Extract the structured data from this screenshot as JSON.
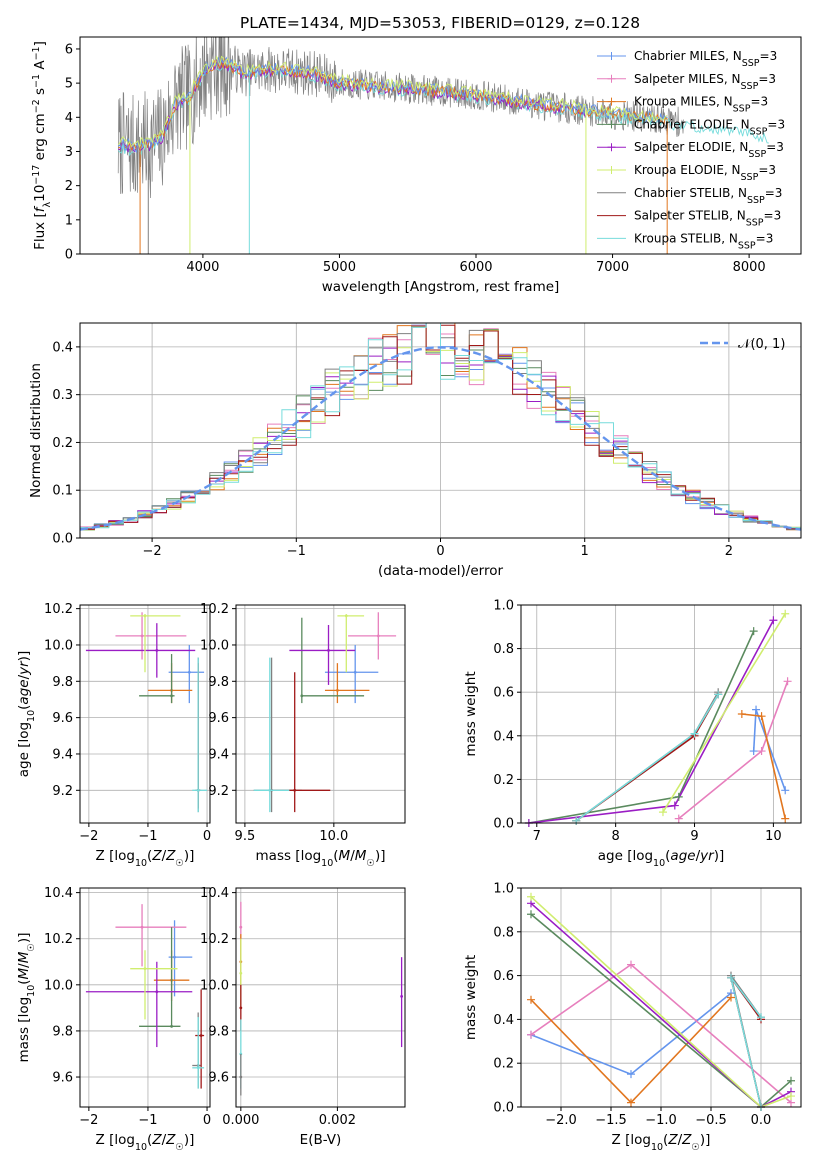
{
  "figure_title": "PLATE=1434, MJD=53053, FIBERID=0129, z=0.128",
  "colors": {
    "blue": "#6495ed",
    "pink": "#e77fbd",
    "orange": "#e1761f",
    "green": "#5a8a5e",
    "purple": "#9a1dc4",
    "yellowgreen": "#d0ed6f",
    "gray": "#808080",
    "darkred": "#a01818",
    "cyan": "#77dcdc"
  },
  "legend_labels": [
    [
      "Chabrier MILES, N",
      "SSP",
      "=3"
    ],
    [
      "Salpeter MILES, N",
      "SSP",
      "=3"
    ],
    [
      "Kroupa MILES, N",
      "SSP",
      "=3"
    ],
    [
      "Chabrier ELODIE, N",
      "SSP",
      "=3"
    ],
    [
      "Salpeter ELODIE, N",
      "SSP",
      "=3"
    ],
    [
      "Kroupa ELODIE, N",
      "SSP",
      "=3"
    ],
    [
      "Chabrier STELIB, N",
      "SSP",
      "=3"
    ],
    [
      "Salpeter STELIB, N",
      "SSP",
      "=3"
    ],
    [
      "Kroupa STELIB, N",
      "SSP",
      "=3"
    ]
  ],
  "chart_data": [
    {
      "id": "spectrum",
      "type": "line",
      "xlabel": "wavelength [Angstrom, rest frame]",
      "ylabel": "Flux [f_λ 10^-17 erg cm^-2 s^-1 A^-1]",
      "xlim": [
        3100,
        8380
      ],
      "ylim": [
        0,
        6.35
      ],
      "xticks": [
        4000,
        5000,
        6000,
        7000,
        8000
      ],
      "yticks": [
        0,
        1,
        2,
        3,
        4,
        5,
        6
      ],
      "grid": false,
      "legend": "top-right",
      "continuum": {
        "x": [
          3400,
          3500,
          3600,
          3700,
          3800,
          3900,
          4000,
          4100,
          4200,
          4300,
          4500,
          4800,
          5000,
          5500,
          6000,
          6500,
          7000,
          7500,
          8000,
          8100
        ],
        "y": [
          3.2,
          3.1,
          3.2,
          3.4,
          4.4,
          4.6,
          5.3,
          5.6,
          5.5,
          5.3,
          5.4,
          5.3,
          5.0,
          4.85,
          4.65,
          4.35,
          4.1,
          3.85,
          3.6,
          3.5
        ]
      },
      "dropouts": [
        {
          "x": 3540,
          "color": "orange"
        },
        {
          "x": 3600,
          "color": "gray"
        },
        {
          "x": 3905,
          "color": "yellowgreen"
        },
        {
          "x": 4340,
          "color": "cyan"
        },
        {
          "x": 6805,
          "color": "yellowgreen"
        },
        {
          "x": 7400,
          "color": "orange"
        }
      ]
    },
    {
      "id": "residuals",
      "type": "line",
      "xlabel": "(data-model)/error",
      "ylabel": "Normed distribution",
      "xlim": [
        -2.5,
        2.5
      ],
      "ylim": [
        0,
        0.45
      ],
      "xticks": [
        -2,
        -1,
        0,
        1,
        2
      ],
      "yticks": [
        0.0,
        0.1,
        0.2,
        0.3,
        0.4
      ],
      "grid": true,
      "legend": "top-right",
      "series": [
        {
          "name": "N(0,1)",
          "label_text": "𝒩(0, 1)",
          "mean": 0,
          "sigma": 1,
          "style": "dashed",
          "color": "blue"
        }
      ],
      "histogram_bin_width": 0.1
    },
    {
      "id": "age_vs_Z",
      "type": "scatter",
      "xlabel": "Z [log10(Z/Z☉)]",
      "ylabel": "age [log10(age/yr)]",
      "xlim": [
        -2.15,
        0.05
      ],
      "ylim": [
        9.02,
        10.22
      ],
      "xticks": [
        -2,
        -1,
        0
      ],
      "yticks": [
        9.2,
        9.4,
        9.6,
        9.8,
        10.0,
        10.2
      ],
      "grid": true,
      "points": [
        {
          "color": "blue",
          "x": -0.3,
          "xlo": -0.65,
          "xhi": -0.05,
          "y": 9.85,
          "ylo": 9.68,
          "yhi": 10.0
        },
        {
          "color": "pink",
          "x": -1.1,
          "xlo": -1.55,
          "xhi": -0.35,
          "y": 10.05,
          "ylo": 9.92,
          "yhi": 10.18
        },
        {
          "color": "orange",
          "x": -0.6,
          "xlo": -1.0,
          "xhi": -0.25,
          "y": 9.75,
          "ylo": 9.68,
          "yhi": 9.9
        },
        {
          "color": "green",
          "x": -0.6,
          "xlo": -1.15,
          "xhi": -0.55,
          "y": 9.72,
          "ylo": 9.68,
          "yhi": 9.95
        },
        {
          "color": "purple",
          "x": -0.85,
          "xlo": -2.05,
          "xhi": -0.2,
          "y": 9.97,
          "ylo": 9.82,
          "yhi": 10.12
        },
        {
          "color": "yellowgreen",
          "x": -1.05,
          "xlo": -1.3,
          "xhi": -0.45,
          "y": 10.16,
          "ylo": 9.85,
          "yhi": 10.17
        },
        {
          "color": "gray",
          "x": -0.15,
          "xlo": -0.2,
          "xhi": -0.1,
          "y": 9.2,
          "ylo": 9.08,
          "yhi": 9.93
        },
        {
          "color": "darkred",
          "x": -0.15,
          "xlo": -0.18,
          "xhi": -0.12,
          "y": 9.2,
          "ylo": 9.1,
          "yhi": 9.9
        },
        {
          "color": "cyan",
          "x": -0.15,
          "xlo": -0.25,
          "xhi": 0.0,
          "y": 9.2,
          "ylo": 9.08,
          "yhi": 9.93
        }
      ]
    },
    {
      "id": "age_vs_mass",
      "type": "scatter",
      "xlabel": "mass [log10(M/M☉)]",
      "ylabel": "",
      "xlim": [
        9.45,
        10.4
      ],
      "ylim": [
        9.02,
        10.22
      ],
      "xticks": [
        9.5,
        10.0
      ],
      "yticks": [
        9.2,
        9.4,
        9.6,
        9.8,
        10.0,
        10.2
      ],
      "grid": true,
      "points": [
        {
          "color": "blue",
          "x": 10.12,
          "xlo": 9.95,
          "xhi": 10.25,
          "y": 9.85,
          "ylo": 9.68,
          "yhi": 10.0
        },
        {
          "color": "pink",
          "x": 10.25,
          "xlo": 10.08,
          "xhi": 10.35,
          "y": 10.05,
          "ylo": 9.92,
          "yhi": 10.18
        },
        {
          "color": "orange",
          "x": 10.02,
          "xlo": 9.95,
          "xhi": 10.2,
          "y": 9.75,
          "ylo": 9.68,
          "yhi": 9.9
        },
        {
          "color": "green",
          "x": 9.82,
          "xlo": 9.82,
          "xhi": 10.17,
          "y": 9.72,
          "ylo": 9.68,
          "yhi": 10.15
        },
        {
          "color": "purple",
          "x": 9.97,
          "xlo": 9.75,
          "xhi": 10.12,
          "y": 9.97,
          "ylo": 9.78,
          "yhi": 10.11
        },
        {
          "color": "yellowgreen",
          "x": 10.07,
          "xlo": 10.02,
          "xhi": 10.17,
          "y": 10.16,
          "ylo": 9.85,
          "yhi": 10.17
        },
        {
          "color": "gray",
          "x": 9.65,
          "xlo": 9.55,
          "xhi": 9.82,
          "y": 9.2,
          "ylo": 9.08,
          "yhi": 9.93
        },
        {
          "color": "darkred",
          "x": 9.78,
          "xlo": 9.65,
          "xhi": 9.98,
          "y": 9.2,
          "ylo": 9.08,
          "yhi": 9.85
        },
        {
          "color": "cyan",
          "x": 9.64,
          "xlo": 9.55,
          "xhi": 9.75,
          "y": 9.2,
          "ylo": 9.08,
          "yhi": 9.93
        }
      ]
    },
    {
      "id": "weight_vs_age",
      "type": "line",
      "xlabel": "age [log10(age/yr)]",
      "ylabel": "mass weight",
      "xlim": [
        6.8,
        10.35
      ],
      "ylim": [
        0,
        1.0
      ],
      "xticks": [
        7,
        8,
        9,
        10
      ],
      "yticks": [
        0.0,
        0.2,
        0.4,
        0.6,
        0.8,
        1.0
      ],
      "grid": true,
      "series": [
        {
          "color": "blue",
          "x": [
            9.75,
            9.78,
            10.15
          ],
          "y": [
            0.33,
            0.52,
            0.15
          ]
        },
        {
          "color": "pink",
          "x": [
            8.8,
            9.85,
            10.18
          ],
          "y": [
            0.02,
            0.33,
            0.65
          ]
        },
        {
          "color": "orange",
          "x": [
            9.6,
            9.85,
            10.15
          ],
          "y": [
            0.5,
            0.49,
            0.02
          ]
        },
        {
          "color": "green",
          "x": [
            6.9,
            8.8,
            9.75
          ],
          "y": [
            0.0,
            0.12,
            0.88
          ]
        },
        {
          "color": "purple",
          "x": [
            6.9,
            8.75,
            10.0
          ],
          "y": [
            0.0,
            0.08,
            0.93
          ]
        },
        {
          "color": "yellowgreen",
          "x": [
            8.6,
            10.15
          ],
          "y": [
            0.05,
            0.96
          ]
        },
        {
          "color": "gray",
          "x": [
            7.5,
            9.0,
            9.3
          ],
          "y": [
            0.01,
            0.41,
            0.6
          ]
        },
        {
          "color": "darkred",
          "x": [
            7.5,
            9.0,
            9.3
          ],
          "y": [
            0.01,
            0.4,
            0.59
          ]
        },
        {
          "color": "cyan",
          "x": [
            7.5,
            9.0,
            9.3
          ],
          "y": [
            0.01,
            0.41,
            0.59
          ]
        }
      ]
    },
    {
      "id": "mass_vs_Z",
      "type": "scatter",
      "xlabel": "Z [log10(Z/Z☉)]",
      "ylabel": "mass [log10(M/M☉)]",
      "xlim": [
        -2.15,
        0.05
      ],
      "ylim": [
        9.47,
        10.42
      ],
      "xticks": [
        -2,
        -1,
        0
      ],
      "yticks": [
        9.6,
        9.8,
        10.0,
        10.2,
        10.4
      ],
      "grid": true,
      "points": [
        {
          "color": "blue",
          "x": -0.55,
          "xlo": -0.65,
          "xhi": -0.25,
          "y": 10.12,
          "ylo": 9.95,
          "yhi": 10.28
        },
        {
          "color": "pink",
          "x": -1.1,
          "xlo": -1.55,
          "xhi": -0.35,
          "y": 10.25,
          "ylo": 10.08,
          "yhi": 10.35
        },
        {
          "color": "orange",
          "x": -0.6,
          "xlo": -0.9,
          "xhi": -0.3,
          "y": 10.02,
          "ylo": 9.93,
          "yhi": 10.15
        },
        {
          "color": "green",
          "x": -0.6,
          "xlo": -1.15,
          "xhi": -0.45,
          "y": 9.82,
          "ylo": 9.82,
          "yhi": 10.25
        },
        {
          "color": "purple",
          "x": -0.85,
          "xlo": -2.05,
          "xhi": -0.25,
          "y": 9.97,
          "ylo": 9.73,
          "yhi": 10.1
        },
        {
          "color": "yellowgreen",
          "x": -1.05,
          "xlo": -1.3,
          "xhi": -0.5,
          "y": 10.07,
          "ylo": 9.85,
          "yhi": 10.15
        },
        {
          "color": "gray",
          "x": -0.15,
          "xlo": -0.25,
          "xhi": -0.1,
          "y": 9.65,
          "ylo": 9.55,
          "yhi": 9.88
        },
        {
          "color": "darkred",
          "x": -0.1,
          "xlo": -0.2,
          "xhi": -0.05,
          "y": 9.78,
          "ylo": 9.55,
          "yhi": 9.98
        },
        {
          "color": "cyan",
          "x": -0.15,
          "xlo": -0.25,
          "xhi": -0.05,
          "y": 9.64,
          "ylo": 9.55,
          "yhi": 9.86
        }
      ]
    },
    {
      "id": "mass_vs_EBV",
      "type": "scatter",
      "xlabel": "E(B-V)",
      "ylabel": "",
      "xlim": [
        -0.0001,
        0.0034
      ],
      "ylim": [
        9.47,
        10.42
      ],
      "xticks": [
        0.0,
        0.002
      ],
      "xticklabels": [
        "0.000",
        "0.002"
      ],
      "yticks": [
        9.6,
        9.8,
        10.0,
        10.2,
        10.4
      ],
      "grid": true,
      "points": [
        {
          "color": "pink",
          "x": 0.0,
          "y": 10.25,
          "ylo": 10.1,
          "yhi": 10.36
        },
        {
          "color": "orange",
          "x": 0.0,
          "y": 10.1,
          "ylo": 10.0,
          "yhi": 10.22
        },
        {
          "color": "yellowgreen",
          "x": 0.0,
          "y": 10.05,
          "ylo": 9.9,
          "yhi": 10.2
        },
        {
          "color": "darkred",
          "x": 0.0,
          "y": 9.9,
          "ylo": 9.8,
          "yhi": 10.0
        },
        {
          "color": "cyan",
          "x": 0.0,
          "y": 9.7,
          "ylo": 9.55,
          "yhi": 9.85
        },
        {
          "color": "gray",
          "x": 0.0,
          "y": 9.6,
          "ylo": 9.52,
          "yhi": 9.7
        },
        {
          "color": "purple",
          "x": 0.00333,
          "y": 9.95,
          "ylo": 9.73,
          "yhi": 10.12
        }
      ]
    },
    {
      "id": "weight_vs_Z",
      "type": "line",
      "xlabel": "Z [log10(Z/Z☉)]",
      "ylabel": "mass weight",
      "xlim": [
        -2.4,
        0.4
      ],
      "ylim": [
        0,
        1.0
      ],
      "xticks": [
        -2.0,
        -1.5,
        -1.0,
        -0.5,
        0.0
      ],
      "xticklabels": [
        "−2.0",
        "−1.5",
        "−1.0",
        "−0.5",
        "0.0"
      ],
      "yticks": [
        0.0,
        0.2,
        0.4,
        0.6,
        0.8,
        1.0
      ],
      "grid": true,
      "series": [
        {
          "color": "blue",
          "x": [
            -2.3,
            -1.3,
            -0.3
          ],
          "y": [
            0.33,
            0.15,
            0.52
          ]
        },
        {
          "color": "pink",
          "x": [
            -2.3,
            -1.3,
            0.3
          ],
          "y": [
            0.33,
            0.65,
            0.02
          ]
        },
        {
          "color": "orange",
          "x": [
            -2.3,
            -1.3,
            -0.3
          ],
          "y": [
            0.49,
            0.02,
            0.5
          ]
        },
        {
          "color": "green",
          "x": [
            -2.3,
            0.0,
            0.3
          ],
          "y": [
            0.88,
            0.0,
            0.12
          ]
        },
        {
          "color": "purple",
          "x": [
            -2.3,
            0.0,
            0.3
          ],
          "y": [
            0.93,
            0.0,
            0.07
          ]
        },
        {
          "color": "yellowgreen",
          "x": [
            -2.3,
            0.0,
            0.3
          ],
          "y": [
            0.96,
            0.0,
            0.05
          ]
        },
        {
          "color": "gray",
          "x": [
            0.0,
            -0.3,
            0.0
          ],
          "y": [
            0.0,
            0.6,
            0.41
          ]
        },
        {
          "color": "darkred",
          "x": [
            0.0,
            -0.3,
            0.0
          ],
          "y": [
            0.0,
            0.59,
            0.4
          ]
        },
        {
          "color": "cyan",
          "x": [
            0.0,
            -0.3,
            0.0
          ],
          "y": [
            0.0,
            0.59,
            0.41
          ]
        }
      ]
    }
  ]
}
